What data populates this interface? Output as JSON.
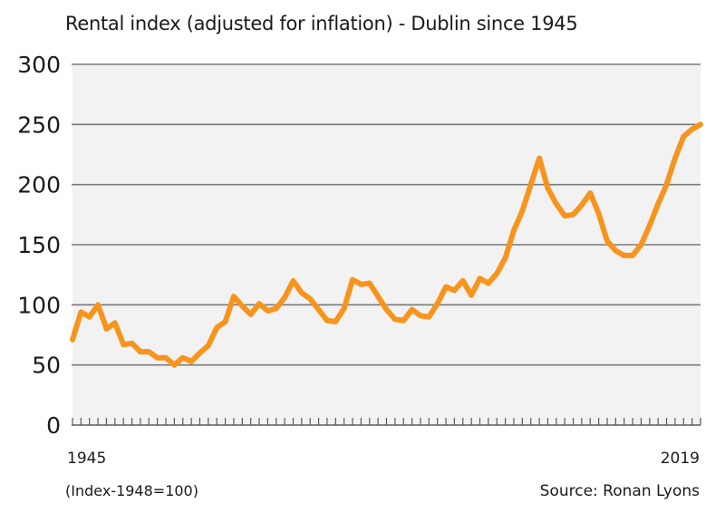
{
  "chart_data": {
    "type": "line",
    "title": "Rental index (adjusted for inflation) - Dublin since 1945",
    "xlabel": "",
    "ylabel": "",
    "x_start_label": "1945",
    "x_end_label": "2019",
    "note": "(Index-1948=100)",
    "source": "Source: Ronan Lyons",
    "ylim": [
      0,
      300
    ],
    "xlim": [
      1945,
      2019
    ],
    "yticks": [
      0,
      50,
      100,
      150,
      200,
      250,
      300
    ],
    "ytick_labels": [
      "0",
      "50",
      "100",
      "150",
      "200",
      "250",
      "300"
    ],
    "grid": true,
    "legend": "none",
    "line_color": "#f7941d",
    "background_color": "#f2f2f2",
    "series": [
      {
        "name": "Rental index",
        "x": [
          1945,
          1946,
          1947,
          1948,
          1949,
          1950,
          1951,
          1952,
          1953,
          1954,
          1955,
          1956,
          1957,
          1958,
          1959,
          1960,
          1961,
          1962,
          1963,
          1964,
          1965,
          1966,
          1967,
          1968,
          1969,
          1970,
          1971,
          1972,
          1973,
          1974,
          1975,
          1976,
          1977,
          1978,
          1979,
          1980,
          1981,
          1982,
          1983,
          1984,
          1985,
          1986,
          1987,
          1988,
          1989,
          1990,
          1991,
          1992,
          1993,
          1994,
          1995,
          1996,
          1997,
          1998,
          1999,
          2000,
          2001,
          2002,
          2003,
          2004,
          2005,
          2006,
          2007,
          2008,
          2009,
          2010,
          2011,
          2012,
          2013,
          2014,
          2015,
          2016,
          2017,
          2018,
          2019
        ],
        "values": [
          71,
          94,
          90,
          100,
          80,
          85,
          67,
          68,
          61,
          61,
          56,
          56,
          50,
          56,
          53,
          60,
          66,
          81,
          86,
          107,
          99,
          92,
          101,
          95,
          97,
          106,
          120,
          110,
          105,
          96,
          87,
          86,
          97,
          121,
          117,
          118,
          107,
          96,
          88,
          87,
          96,
          91,
          90,
          101,
          115,
          112,
          120,
          108,
          122,
          118,
          126,
          139,
          162,
          178,
          200,
          222,
          197,
          184,
          174,
          175,
          183,
          193,
          176,
          153,
          145,
          141,
          141,
          150,
          166,
          184,
          200,
          222,
          240,
          246,
          250
        ]
      }
    ]
  }
}
